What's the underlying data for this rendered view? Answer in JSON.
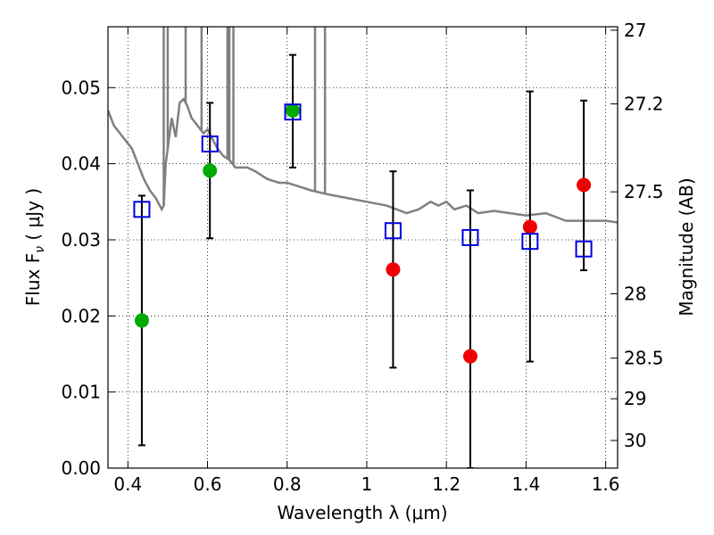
{
  "chart_data": {
    "type": "scatter",
    "xlabel": "Wavelength  λ (μm)",
    "ylabel": "Flux  F",
    "ylabel_sub": "ν",
    "ylabel_unit": "  ( μJy )",
    "ylabel_right": "Magnitude (AB)",
    "xlim": [
      0.35,
      1.63
    ],
    "ylim": [
      0.0,
      0.058
    ],
    "x_ticks": [
      0.4,
      0.6,
      0.8,
      1.0,
      1.2,
      1.4,
      1.6
    ],
    "x_tick_labels": [
      "0.4",
      "0.6",
      "0.8",
      "1",
      "1.2",
      "1.4",
      "1.6"
    ],
    "y_ticks": [
      0.0,
      0.01,
      0.02,
      0.03,
      0.04,
      0.05
    ],
    "y_tick_labels": [
      "0.00",
      "0.01",
      "0.02",
      "0.03",
      "0.04",
      "0.05"
    ],
    "right_ticks": [
      {
        "mag": 27,
        "label": "27"
      },
      {
        "mag": 27.2,
        "label": "27.2"
      },
      {
        "mag": 27.5,
        "label": "27.5"
      },
      {
        "mag": 28,
        "label": "28"
      },
      {
        "mag": 28.5,
        "label": "28.5"
      },
      {
        "mag": 29,
        "label": "29"
      },
      {
        "mag": 30,
        "label": "30"
      }
    ],
    "grid": true,
    "colors": {
      "model": "#808080",
      "green": "#00aa00",
      "red": "#ee0000",
      "square": "#0000dd",
      "errorbar": "#000000"
    },
    "model_spectrum": {
      "x": [
        0.35,
        0.365,
        0.38,
        0.395,
        0.41,
        0.425,
        0.44,
        0.455,
        0.47,
        0.485,
        0.49,
        0.495,
        0.5,
        0.51,
        0.52,
        0.53,
        0.54,
        0.55,
        0.56,
        0.575,
        0.59,
        0.6,
        0.61,
        0.625,
        0.64,
        0.655,
        0.67,
        0.7,
        0.72,
        0.75,
        0.78,
        0.8,
        0.83,
        0.86,
        0.9,
        0.95,
        1.0,
        1.05,
        1.1,
        1.13,
        1.16,
        1.18,
        1.2,
        1.22,
        1.25,
        1.28,
        1.32,
        1.36,
        1.4,
        1.45,
        1.5,
        1.55,
        1.6,
        1.63
      ],
      "y": [
        0.047,
        0.045,
        0.044,
        0.043,
        0.042,
        0.04,
        0.038,
        0.0365,
        0.0355,
        0.034,
        0.0345,
        0.04,
        0.042,
        0.046,
        0.0435,
        0.048,
        0.0485,
        0.0475,
        0.046,
        0.045,
        0.044,
        0.0445,
        0.0435,
        0.042,
        0.041,
        0.0405,
        0.0395,
        0.0395,
        0.039,
        0.038,
        0.0375,
        0.0375,
        0.037,
        0.0365,
        0.036,
        0.0355,
        0.035,
        0.0345,
        0.0335,
        0.034,
        0.035,
        0.0345,
        0.035,
        0.034,
        0.0345,
        0.0335,
        0.0338,
        0.0335,
        0.0332,
        0.0335,
        0.0325,
        0.0325,
        0.0325,
        0.0323
      ],
      "spikes": [
        {
          "x": 0.49,
          "y": 0.058
        },
        {
          "x": 0.5,
          "y": 0.058
        },
        {
          "x": 0.545,
          "y": 0.058
        },
        {
          "x": 0.585,
          "y": 0.058
        },
        {
          "x": 0.65,
          "y": 0.058
        },
        {
          "x": 0.655,
          "y": 0.058
        },
        {
          "x": 0.665,
          "y": 0.058
        },
        {
          "x": 0.87,
          "y": 0.058
        },
        {
          "x": 0.895,
          "y": 0.058
        }
      ]
    },
    "squares": [
      {
        "x": 0.435,
        "y": 0.034,
        "yerr_low": 0.003,
        "yerr_high": 0.0358
      },
      {
        "x": 0.606,
        "y": 0.0426,
        "yerr_low": 0.0302,
        "yerr_high": 0.048
      },
      {
        "x": 0.814,
        "y": 0.0468,
        "yerr_low": 0.0395,
        "yerr_high": 0.0543
      },
      {
        "x": 1.066,
        "y": 0.0312,
        "yerr_low": 0.0132,
        "yerr_high": 0.039
      },
      {
        "x": 1.26,
        "y": 0.0303,
        "yerr_low": 0.0,
        "yerr_high": 0.0365
      },
      {
        "x": 1.41,
        "y": 0.0298,
        "yerr_low": 0.014,
        "yerr_high": 0.0495
      },
      {
        "x": 1.545,
        "y": 0.0288,
        "yerr_low": 0.026,
        "yerr_high": 0.0483
      }
    ],
    "green_points": [
      {
        "x": 0.435,
        "y": 0.0194
      },
      {
        "x": 0.606,
        "y": 0.0391
      },
      {
        "x": 0.814,
        "y": 0.047
      }
    ],
    "red_points": [
      {
        "x": 1.066,
        "y": 0.0261
      },
      {
        "x": 1.26,
        "y": 0.0147
      },
      {
        "x": 1.41,
        "y": 0.0317
      },
      {
        "x": 1.545,
        "y": 0.0372
      }
    ]
  }
}
